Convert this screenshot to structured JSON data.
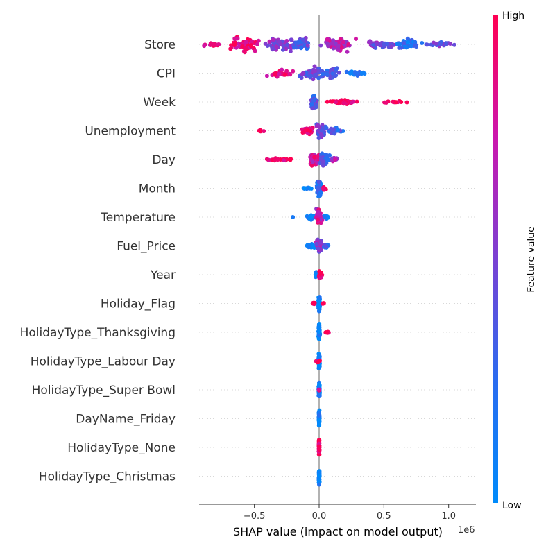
{
  "chart_data": {
    "type": "scatter",
    "subtype": "shap-beeswarm",
    "xlabel": "SHAP value (impact on model output)",
    "x_offset_text": "1e6",
    "xlim": [
      -0.92,
      1.2
    ],
    "x_ticks": [
      {
        "value": -0.5,
        "label": "−0.5"
      },
      {
        "value": 0.0,
        "label": "0.0"
      },
      {
        "value": 0.5,
        "label": "0.5"
      },
      {
        "value": 1.0,
        "label": "1.0"
      }
    ],
    "colorbar": {
      "label": "Feature value",
      "high_label": "High",
      "low_label": "Low",
      "low_color": "#008bfb",
      "high_color": "#ff0052"
    },
    "vertical_line_at": 0,
    "features": [
      {
        "name": "Store",
        "clusters": [
          {
            "c": -0.82,
            "w": 0.1,
            "n": 22,
            "h": 0.25,
            "f": 0.85
          },
          {
            "c": -0.58,
            "w": 0.16,
            "n": 70,
            "h": 1.0,
            "f": 0.9
          },
          {
            "c": -0.3,
            "w": 0.16,
            "n": 55,
            "h": 0.9,
            "f": 0.55
          },
          {
            "c": -0.14,
            "w": 0.1,
            "n": 50,
            "h": 1.0,
            "f": 0.4
          },
          {
            "c": 0.15,
            "w": 0.15,
            "n": 65,
            "h": 0.9,
            "f": 0.7
          },
          {
            "c": 0.48,
            "w": 0.16,
            "n": 45,
            "h": 0.5,
            "f": 0.5
          },
          {
            "c": 0.68,
            "w": 0.14,
            "n": 55,
            "h": 0.7,
            "f": 0.2
          },
          {
            "c": 0.95,
            "w": 0.14,
            "n": 25,
            "h": 0.3,
            "f": 0.45
          }
        ]
      },
      {
        "name": "CPI",
        "clusters": [
          {
            "c": -0.3,
            "w": 0.13,
            "n": 35,
            "h": 0.5,
            "f": 0.92
          },
          {
            "c": -0.05,
            "w": 0.12,
            "n": 55,
            "h": 0.8,
            "f": 0.45
          },
          {
            "c": 0.08,
            "w": 0.1,
            "n": 50,
            "h": 0.8,
            "f": 0.35
          },
          {
            "c": 0.28,
            "w": 0.1,
            "n": 18,
            "h": 0.3,
            "f": 0.15
          }
        ]
      },
      {
        "name": "Week",
        "clusters": [
          {
            "c": -0.04,
            "w": 0.03,
            "n": 70,
            "h": 0.9,
            "f": 0.35
          },
          {
            "c": 0.18,
            "w": 0.18,
            "n": 50,
            "h": 0.3,
            "f": 0.97
          },
          {
            "c": 0.58,
            "w": 0.18,
            "n": 14,
            "h": 0.15,
            "f": 0.97
          }
        ]
      },
      {
        "name": "Unemployment",
        "clusters": [
          {
            "c": -0.44,
            "w": 0.06,
            "n": 10,
            "h": 0.12,
            "f": 0.95
          },
          {
            "c": -0.08,
            "w": 0.06,
            "n": 35,
            "h": 0.4,
            "f": 0.9
          },
          {
            "c": 0.02,
            "w": 0.05,
            "n": 70,
            "h": 1.0,
            "f": 0.45
          },
          {
            "c": 0.12,
            "w": 0.08,
            "n": 30,
            "h": 0.4,
            "f": 0.3
          }
        ]
      },
      {
        "name": "Day",
        "clusters": [
          {
            "c": -0.3,
            "w": 0.13,
            "n": 22,
            "h": 0.15,
            "f": 0.95
          },
          {
            "c": -0.04,
            "w": 0.05,
            "n": 65,
            "h": 0.8,
            "f": 0.8
          },
          {
            "c": 0.04,
            "w": 0.05,
            "n": 45,
            "h": 0.8,
            "f": 0.35
          },
          {
            "c": 0.12,
            "w": 0.06,
            "n": 15,
            "h": 0.3,
            "f": 0.6
          }
        ]
      },
      {
        "name": "Month",
        "clusters": [
          {
            "c": -0.09,
            "w": 0.05,
            "n": 12,
            "h": 0.15,
            "f": 0.05
          },
          {
            "c": 0.0,
            "w": 0.025,
            "n": 65,
            "h": 1.0,
            "f": 0.25
          },
          {
            "c": 0.04,
            "w": 0.02,
            "n": 12,
            "h": 0.2,
            "f": 0.95
          }
        ]
      },
      {
        "name": "Temperature",
        "clusters": [
          {
            "c": -0.2,
            "w": 0.01,
            "n": 1,
            "h": 0.0,
            "f": 0.05
          },
          {
            "c": -0.06,
            "w": 0.06,
            "n": 30,
            "h": 0.3,
            "f": 0.1
          },
          {
            "c": 0.0,
            "w": 0.03,
            "n": 60,
            "h": 1.0,
            "f": 0.75
          },
          {
            "c": 0.05,
            "w": 0.03,
            "n": 10,
            "h": 0.3,
            "f": 0.1
          }
        ]
      },
      {
        "name": "Fuel_Price",
        "clusters": [
          {
            "c": -0.07,
            "w": 0.04,
            "n": 20,
            "h": 0.25,
            "f": 0.05
          },
          {
            "c": 0.0,
            "w": 0.03,
            "n": 65,
            "h": 1.0,
            "f": 0.6
          },
          {
            "c": 0.05,
            "w": 0.03,
            "n": 15,
            "h": 0.3,
            "f": 0.3
          }
        ]
      },
      {
        "name": "Year",
        "clusters": [
          {
            "c": -0.02,
            "w": 0.01,
            "n": 15,
            "h": 0.4,
            "f": 0.05
          },
          {
            "c": 0.01,
            "w": 0.015,
            "n": 30,
            "h": 0.7,
            "f": 0.9
          }
        ]
      },
      {
        "name": "Holiday_Flag",
        "clusters": [
          {
            "c": -0.04,
            "w": 0.02,
            "n": 10,
            "h": 0.1,
            "f": 0.95
          },
          {
            "c": 0.0,
            "w": 0.008,
            "n": 60,
            "h": 1.0,
            "f": 0.05
          },
          {
            "c": 0.03,
            "w": 0.01,
            "n": 5,
            "h": 0.1,
            "f": 0.95
          }
        ]
      },
      {
        "name": "HolidayType_Thanksgiving",
        "clusters": [
          {
            "c": 0.0,
            "w": 0.008,
            "n": 60,
            "h": 1.0,
            "f": 0.05
          },
          {
            "c": 0.06,
            "w": 0.03,
            "n": 6,
            "h": 0.1,
            "f": 0.97
          }
        ]
      },
      {
        "name": "HolidayType_Labour Day",
        "clusters": [
          {
            "c": 0.0,
            "w": 0.008,
            "n": 60,
            "h": 1.0,
            "f": 0.05
          },
          {
            "c": -0.01,
            "w": 0.02,
            "n": 5,
            "h": 0.15,
            "f": 0.97
          }
        ]
      },
      {
        "name": "HolidayType_Super Bowl",
        "clusters": [
          {
            "c": 0.0,
            "w": 0.006,
            "n": 60,
            "h": 1.0,
            "f": 0.05
          },
          {
            "c": 0.0,
            "w": 0.005,
            "n": 4,
            "h": 0.1,
            "f": 0.97
          }
        ]
      },
      {
        "name": "DayName_Friday",
        "clusters": [
          {
            "c": 0.0,
            "w": 0.004,
            "n": 60,
            "h": 1.0,
            "f": 0.05
          }
        ]
      },
      {
        "name": "HolidayType_None",
        "clusters": [
          {
            "c": 0.0,
            "w": 0.004,
            "n": 60,
            "h": 1.0,
            "f": 0.97
          }
        ]
      },
      {
        "name": "HolidayType_Christmas",
        "clusters": [
          {
            "c": 0.0,
            "w": 0.004,
            "n": 60,
            "h": 1.0,
            "f": 0.05
          }
        ]
      }
    ]
  }
}
